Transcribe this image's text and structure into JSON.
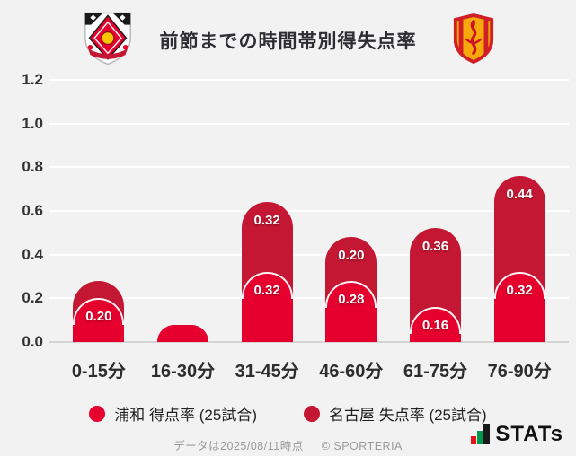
{
  "header": {
    "title": "前節までの時間帯別得失点率",
    "left_logo": "urawa-reds-crest",
    "right_logo": "nagoya-grampus-crest"
  },
  "chart_data": {
    "type": "bar",
    "stacked": true,
    "title": "前節までの時間帯別得失点率",
    "categories": [
      "0-15分",
      "16-30分",
      "31-45分",
      "46-60分",
      "61-75分",
      "76-90分"
    ],
    "series": [
      {
        "name": "浦和 得点率 (25試合)",
        "color": "#e6002d",
        "values": [
          0.2,
          0.08,
          0.32,
          0.28,
          0.16,
          0.32
        ],
        "labels": [
          "0.20",
          null,
          "0.32",
          "0.28",
          "0.16",
          "0.32"
        ]
      },
      {
        "name": "名古屋 失点率 (25試合)",
        "color": "#c31733",
        "values": [
          0.08,
          0.0,
          0.32,
          0.2,
          0.36,
          0.44
        ],
        "labels": [
          null,
          null,
          "0.32",
          "0.20",
          "0.36",
          "0.44"
        ]
      }
    ],
    "ylim": [
      0,
      1.2
    ],
    "ytick_step": 0.2,
    "yticks": [
      "0.0",
      "0.2",
      "0.4",
      "0.6",
      "0.8",
      "1.0",
      "1.2"
    ],
    "grid": true,
    "legend_position": "bottom"
  },
  "legend": {
    "items": [
      {
        "label": "浦和 得点率 (25試合)",
        "color": "#e6002d"
      },
      {
        "label": "名古屋 失点率 (25試合)",
        "color": "#c31733"
      }
    ]
  },
  "footer": {
    "note": "データは2025/08/11時点",
    "copyright": "© SPORTERIA",
    "brand": "STATs"
  },
  "colors": {
    "background": "#f2f2f2",
    "urawa": "#e6002d",
    "nagoya": "#c31733",
    "grid": "#ffffff",
    "baseline": "#d4d4d4"
  }
}
